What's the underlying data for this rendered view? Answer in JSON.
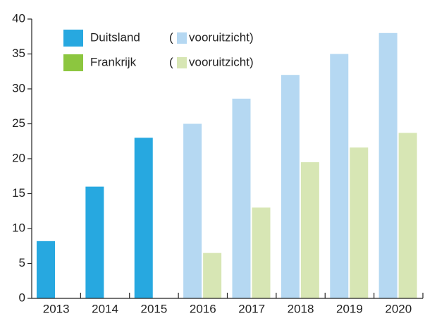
{
  "chart_data": {
    "type": "bar",
    "categories": [
      "2013",
      "2014",
      "2015",
      "2016",
      "2017",
      "2018",
      "2019",
      "2020"
    ],
    "legend_open": "(",
    "series": [
      {
        "name": "Duitsland",
        "color": "#27a8e0",
        "values": [
          8.2,
          16,
          23,
          null,
          null,
          null,
          null,
          null
        ]
      },
      {
        "name": "vooruitzicht)",
        "color": "#b5d8f2",
        "values": [
          null,
          null,
          null,
          25,
          28.6,
          32,
          35,
          38
        ]
      },
      {
        "name": "Frankrijk",
        "color": "#8cc63f",
        "values": [
          null,
          null,
          null,
          null,
          null,
          null,
          null,
          null
        ]
      },
      {
        "name": "vooruitzicht)",
        "color": "#d7e6b4",
        "values": [
          null,
          null,
          null,
          6.5,
          13,
          19.5,
          21.6,
          23.7
        ]
      }
    ],
    "ylim": [
      0,
      40
    ],
    "yticks": [
      0,
      5,
      10,
      15,
      20,
      25,
      30,
      35,
      40
    ],
    "grid": false
  }
}
